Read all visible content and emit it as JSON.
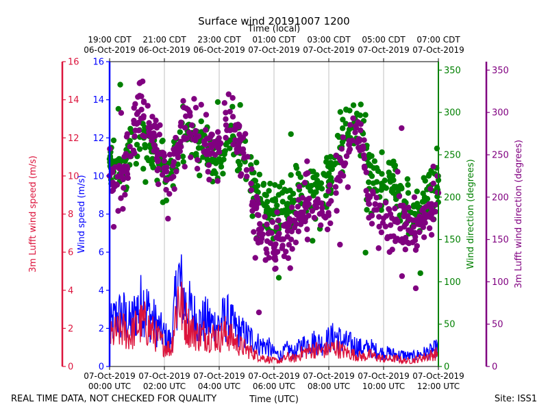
{
  "chart_data": {
    "type": "scatter",
    "title": "Surface wind 20191007 1200",
    "top_axis_label": "Time (local)",
    "xlabel": "Time (UTC)",
    "x_unit": "hours since 07-Oct-2019 00:00 UTC",
    "xlim": [
      0,
      12
    ],
    "x_ticks_utc": [
      {
        "x": 0,
        "line1": "07-Oct-2019",
        "line2": "00:00 UTC"
      },
      {
        "x": 2,
        "line1": "07-Oct-2019",
        "line2": "02:00 UTC"
      },
      {
        "x": 4,
        "line1": "07-Oct-2019",
        "line2": "04:00 UTC"
      },
      {
        "x": 6,
        "line1": "07-Oct-2019",
        "line2": "06:00 UTC"
      },
      {
        "x": 8,
        "line1": "07-Oct-2019",
        "line2": "08:00 UTC"
      },
      {
        "x": 10,
        "line1": "07-Oct-2019",
        "line2": "10:00 UTC"
      },
      {
        "x": 12,
        "line1": "07-Oct-2019",
        "line2": "12:00 UTC"
      }
    ],
    "x_ticks_local": [
      {
        "x": 0,
        "line1": "19:00 CDT",
        "line2": "06-Oct-2019"
      },
      {
        "x": 2,
        "line1": "21:00 CDT",
        "line2": "06-Oct-2019"
      },
      {
        "x": 4,
        "line1": "23:00 CDT",
        "line2": "06-Oct-2019"
      },
      {
        "x": 6,
        "line1": "01:00 CDT",
        "line2": "07-Oct-2019"
      },
      {
        "x": 8,
        "line1": "03:00 CDT",
        "line2": "07-Oct-2019"
      },
      {
        "x": 10,
        "line1": "05:00 CDT",
        "line2": "07-Oct-2019"
      },
      {
        "x": 12,
        "line1": "07:00 CDT",
        "line2": "07-Oct-2019"
      }
    ],
    "axes": {
      "lufft_speed": {
        "label": "3m Lufft wind speed (m/s)",
        "ylim": [
          0,
          16
        ],
        "ticks": [
          "0",
          "2",
          "4",
          "6",
          "8",
          "10",
          "12",
          "14",
          "16"
        ],
        "color": "#dc143c"
      },
      "wind_speed": {
        "label": "Wind speed (m/s)",
        "ylim": [
          0,
          16
        ],
        "ticks": [
          "0",
          "2",
          "4",
          "6",
          "8",
          "10",
          "12",
          "14",
          "16"
        ],
        "color": "#0000ff"
      },
      "wind_dir": {
        "label": "Wind direction (degrees)",
        "ylim": [
          0,
          360
        ],
        "ticks": [
          "0",
          "50",
          "100",
          "150",
          "200",
          "250",
          "300",
          "350"
        ],
        "color": "#008000"
      },
      "lufft_dir": {
        "label": "3m Lufft wind direction (degrees)",
        "ylim": [
          0,
          360
        ],
        "ticks": [
          "0",
          "50",
          "100",
          "150",
          "200",
          "250",
          "300",
          "350"
        ],
        "color": "#800080"
      }
    },
    "series": [
      {
        "name": "Wind speed",
        "kind": "line",
        "axis": "wind_speed",
        "color": "#0000ff",
        "x": [
          0,
          0.25,
          0.5,
          0.75,
          1,
          1.25,
          1.5,
          1.75,
          2,
          2.25,
          2.5,
          2.75,
          3,
          3.25,
          3.5,
          3.75,
          4,
          4.25,
          4.5,
          4.75,
          5,
          5.25,
          5.5,
          5.75,
          6,
          6.25,
          6.5,
          6.75,
          7,
          7.25,
          7.5,
          7.75,
          8,
          8.25,
          8.5,
          8.75,
          9,
          9.25,
          9.5,
          9.75,
          10,
          10.25,
          10.5,
          10.75,
          11,
          11.25,
          11.5,
          11.75,
          12
        ],
        "values": [
          2.0,
          2.6,
          2.7,
          2.2,
          3.0,
          3.4,
          2.6,
          2.1,
          1.6,
          1.3,
          4.7,
          3.3,
          2.8,
          2.3,
          2.4,
          2.2,
          2.2,
          2.6,
          2.1,
          1.8,
          1.6,
          1.4,
          1.1,
          1.1,
          0.7,
          0.6,
          0.9,
          0.7,
          1.1,
          1.2,
          1.3,
          1.2,
          1.4,
          1.6,
          1.3,
          1.2,
          1.1,
          0.9,
          1.0,
          0.8,
          0.7,
          0.7,
          0.6,
          0.6,
          0.5,
          0.6,
          0.7,
          0.8,
          1.0
        ]
      },
      {
        "name": "3m Lufft wind speed",
        "kind": "line",
        "axis": "lufft_speed",
        "color": "#dc143c",
        "x": [
          0,
          0.25,
          0.5,
          0.75,
          1,
          1.25,
          1.5,
          1.75,
          2,
          2.25,
          2.5,
          2.75,
          3,
          3.25,
          3.5,
          3.75,
          4,
          4.25,
          4.5,
          4.75,
          5,
          5.25,
          5.5,
          5.75,
          6,
          6.25,
          6.5,
          6.75,
          7,
          7.25,
          7.5,
          7.75,
          8,
          8.25,
          8.5,
          8.75,
          9,
          9.25,
          9.5,
          9.75,
          10,
          10.25,
          10.5,
          10.75,
          11,
          11.25,
          11.5,
          11.75,
          12
        ],
        "values": [
          1.5,
          1.8,
          1.9,
          1.6,
          2.1,
          2.3,
          1.9,
          1.5,
          1.1,
          0.9,
          3.8,
          2.4,
          1.9,
          1.6,
          1.7,
          1.6,
          1.5,
          1.8,
          1.4,
          1.1,
          0.9,
          0.7,
          0.5,
          0.4,
          0.3,
          0.3,
          0.5,
          0.4,
          0.7,
          0.8,
          0.9,
          0.8,
          0.9,
          1.0,
          0.8,
          0.7,
          0.6,
          0.5,
          0.6,
          0.5,
          0.4,
          0.4,
          0.4,
          0.3,
          0.3,
          0.4,
          0.5,
          0.6,
          0.7
        ]
      },
      {
        "name": "Wind direction",
        "kind": "scatter",
        "axis": "wind_dir",
        "color": "#008000",
        "x": [
          0,
          0.25,
          0.5,
          0.75,
          1,
          1.25,
          1.5,
          1.75,
          2,
          2.25,
          2.5,
          2.75,
          3,
          3.25,
          3.5,
          3.75,
          4,
          4.25,
          4.5,
          4.75,
          5,
          5.25,
          5.5,
          5.75,
          6,
          6.25,
          6.5,
          6.75,
          7,
          7.25,
          7.5,
          7.75,
          8,
          8.25,
          8.5,
          8.75,
          9,
          9.25,
          9.5,
          9.75,
          10,
          10.25,
          10.5,
          10.75,
          11,
          11.25,
          11.5,
          11.75,
          12
        ],
        "values": [
          245,
          238,
          232,
          250,
          262,
          270,
          258,
          245,
          235,
          228,
          262,
          272,
          268,
          258,
          250,
          242,
          245,
          262,
          272,
          255,
          232,
          212,
          198,
          188,
          180,
          182,
          188,
          196,
          202,
          212,
          215,
          210,
          218,
          240,
          265,
          280,
          290,
          275,
          228,
          218,
          212,
          218,
          202,
          192,
          182,
          188,
          198,
          208,
          220
        ]
      },
      {
        "name": "3m Lufft wind direction",
        "kind": "scatter",
        "axis": "lufft_dir",
        "color": "#800080",
        "x": [
          0,
          0.25,
          0.5,
          0.75,
          1,
          1.25,
          1.5,
          1.75,
          2,
          2.25,
          2.5,
          2.75,
          3,
          3.25,
          3.5,
          3.75,
          4,
          4.25,
          4.5,
          4.75,
          5,
          5.25,
          5.5,
          5.75,
          6,
          6.25,
          6.5,
          6.75,
          7,
          7.25,
          7.5,
          7.75,
          8,
          8.25,
          8.5,
          8.75,
          9,
          9.25,
          9.5,
          9.75,
          10,
          10.25,
          10.5,
          10.75,
          11,
          11.25,
          11.5,
          11.75,
          12
        ],
        "values": [
          225,
          215,
          222,
          248,
          298,
          312,
          282,
          250,
          232,
          222,
          262,
          282,
          285,
          272,
          262,
          252,
          265,
          285,
          295,
          268,
          232,
          190,
          158,
          148,
          140,
          150,
          160,
          172,
          182,
          192,
          190,
          182,
          192,
          212,
          240,
          262,
          282,
          260,
          200,
          185,
          175,
          180,
          172,
          165,
          160,
          168,
          180,
          192,
          205
        ]
      }
    ]
  },
  "footer": {
    "quality_note": "REAL TIME DATA, NOT CHECKED FOR QUALITY",
    "site": "Site: ISS1"
  }
}
